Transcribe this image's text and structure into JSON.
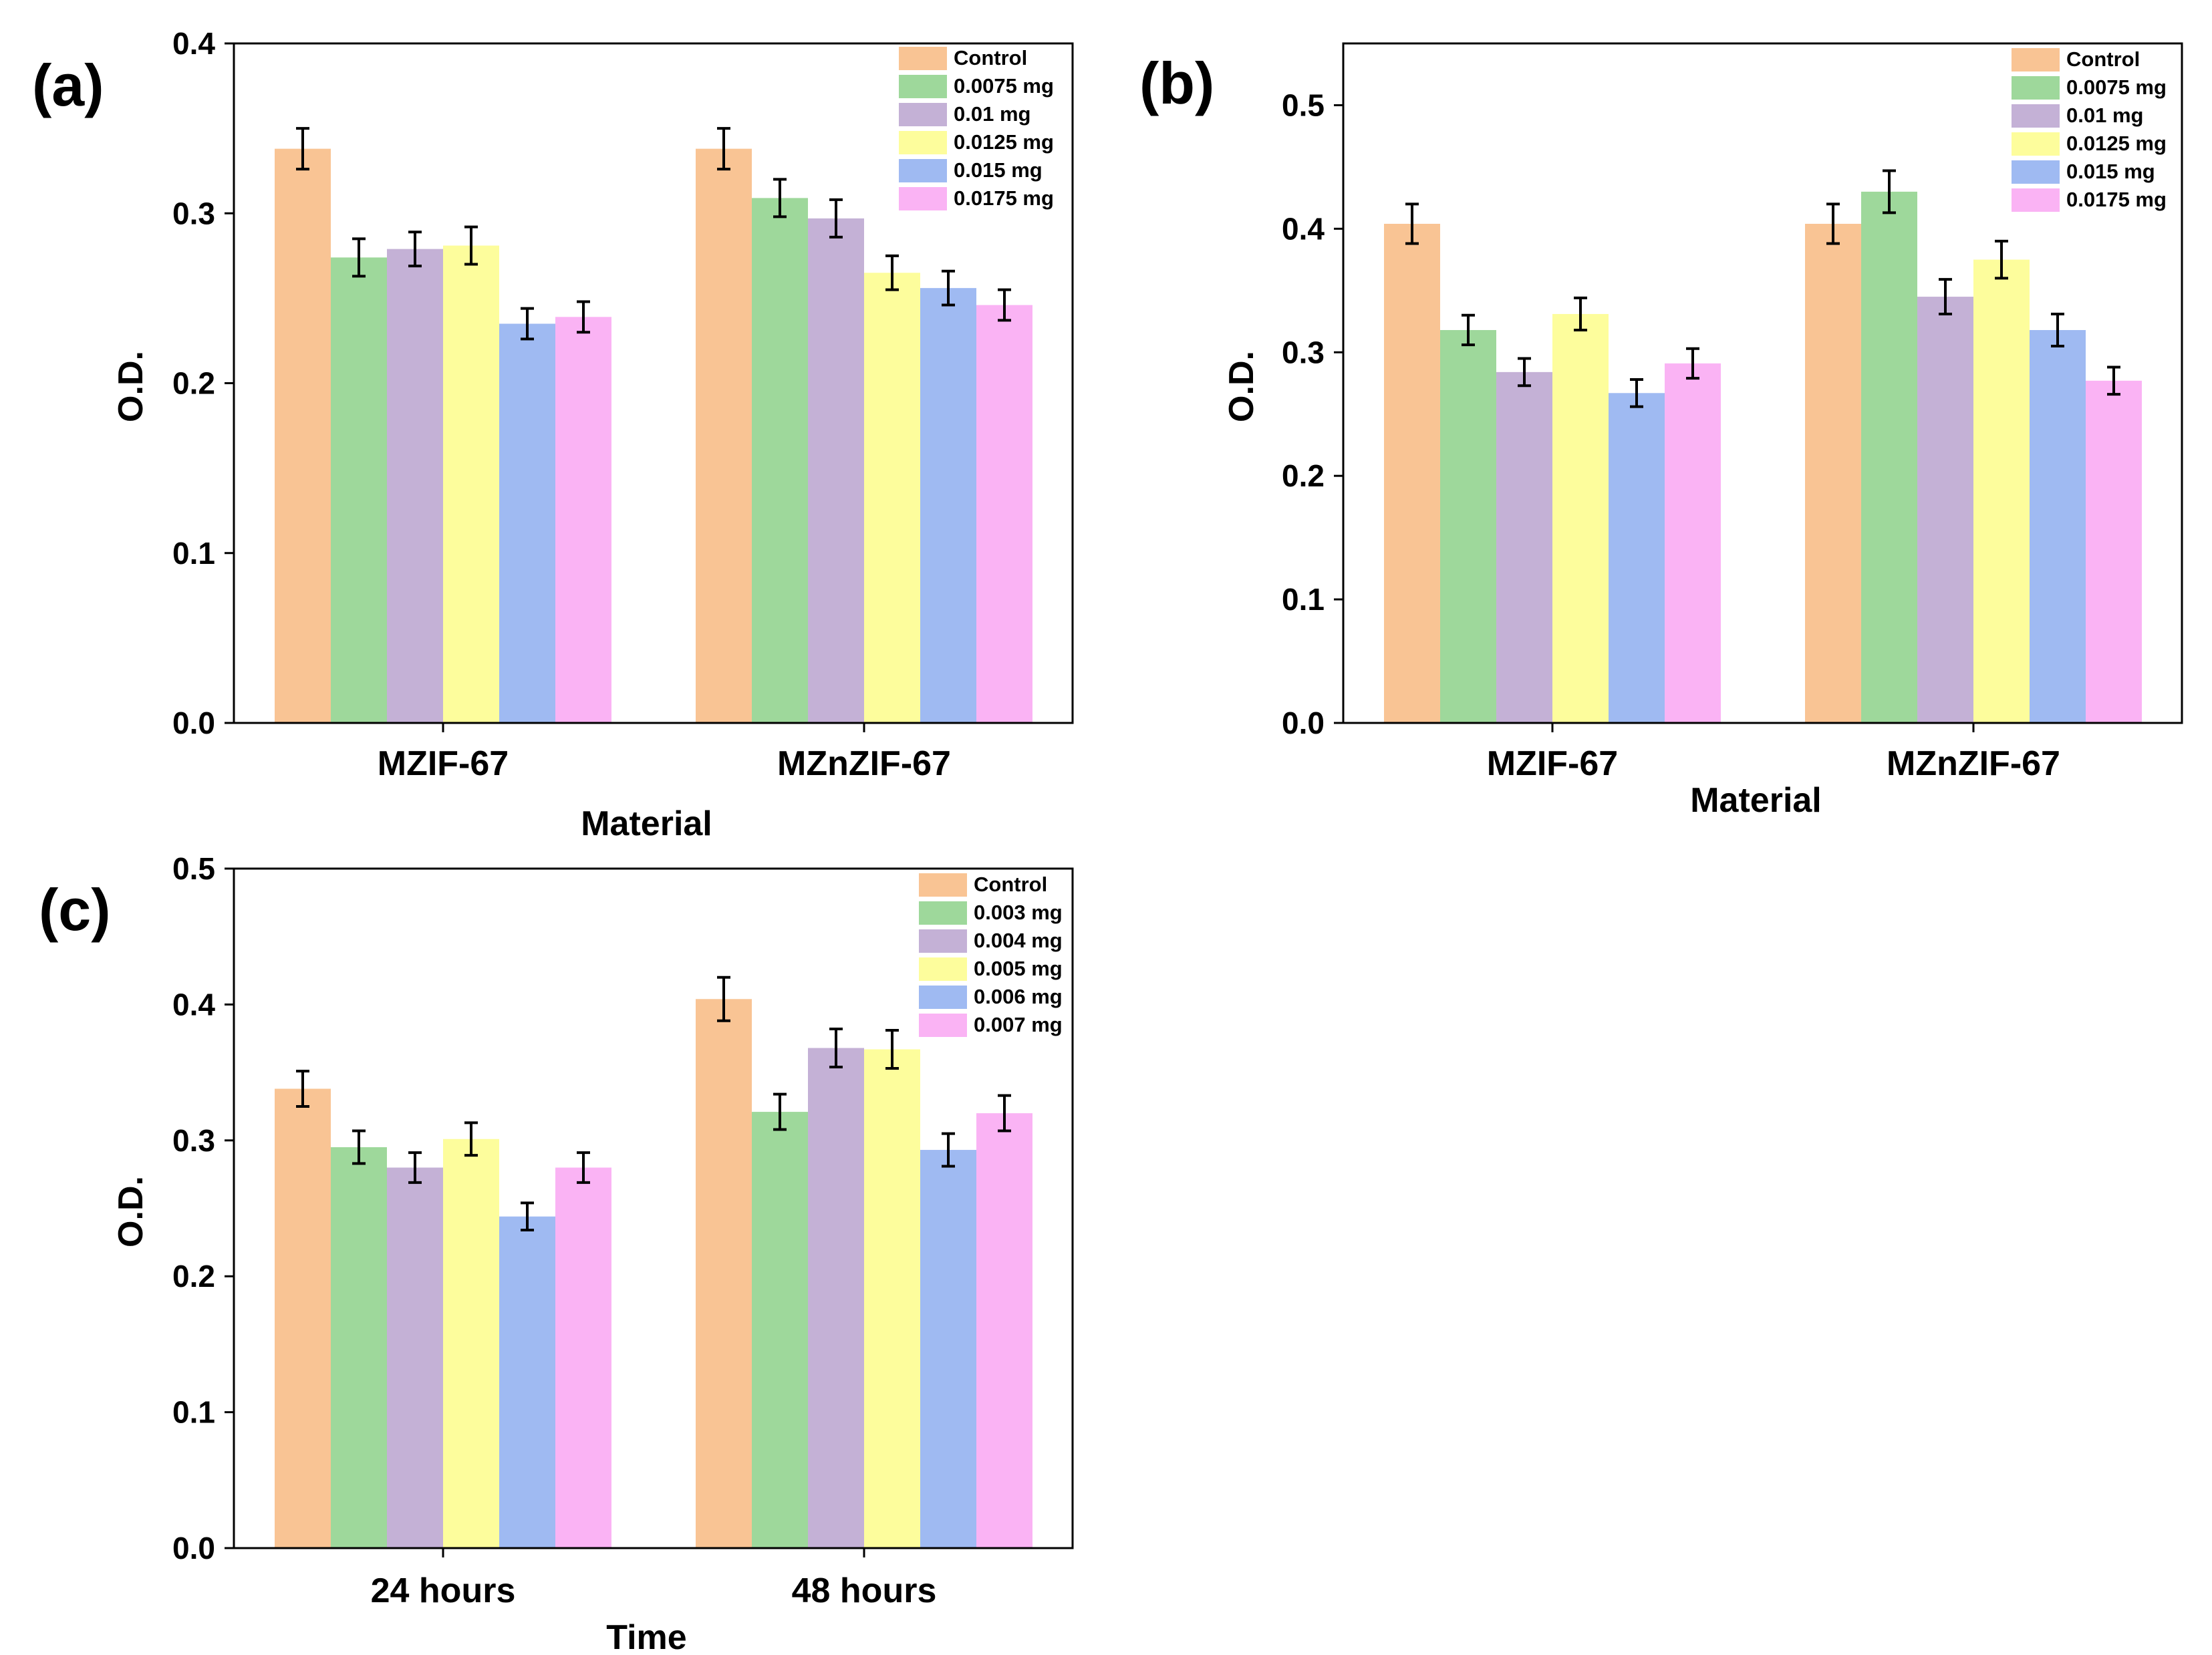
{
  "chart_data": [
    {
      "panel_label": "(a)",
      "type": "bar",
      "xlabel": "Material",
      "ylabel": "O.D.",
      "ylim": [
        0,
        0.4
      ],
      "yticks": [
        "0.0",
        "0.1",
        "0.2",
        "0.3",
        "0.4"
      ],
      "categories": [
        "MZIF-67",
        "MZnZIF-67"
      ],
      "legend_position": "top-right",
      "series": [
        {
          "name": "Control",
          "color": "#f9c494",
          "values": [
            0.338,
            0.338
          ],
          "errors": [
            0.012,
            0.012
          ]
        },
        {
          "name": "0.0075 mg",
          "color": "#9ed89b",
          "values": [
            0.274,
            0.309
          ],
          "errors": [
            0.011,
            0.011
          ]
        },
        {
          "name": "0.01 mg",
          "color": "#c4b1d6",
          "values": [
            0.279,
            0.297
          ],
          "errors": [
            0.01,
            0.011
          ]
        },
        {
          "name": "0.0125 mg",
          "color": "#fdfd9c",
          "values": [
            0.281,
            0.265
          ],
          "errors": [
            0.011,
            0.01
          ]
        },
        {
          "name": "0.015 mg",
          "color": "#9fbaf2",
          "values": [
            0.235,
            0.256
          ],
          "errors": [
            0.009,
            0.01
          ]
        },
        {
          "name": "0.0175 mg",
          "color": "#fab3f4",
          "values": [
            0.239,
            0.246
          ],
          "errors": [
            0.009,
            0.009
          ]
        }
      ]
    },
    {
      "panel_label": "(b)",
      "type": "bar",
      "xlabel": "Material",
      "ylabel": "O.D.",
      "ylim": [
        0,
        0.55
      ],
      "yticks": [
        "0.0",
        "0.1",
        "0.2",
        "0.3",
        "0.4",
        "0.5"
      ],
      "categories": [
        "MZIF-67",
        "MZnZIF-67"
      ],
      "legend_position": "top-right",
      "series": [
        {
          "name": "Control",
          "color": "#f9c494",
          "values": [
            0.404,
            0.404
          ],
          "errors": [
            0.016,
            0.016
          ]
        },
        {
          "name": "0.0075 mg",
          "color": "#9ed89b",
          "values": [
            0.318,
            0.43
          ],
          "errors": [
            0.012,
            0.017
          ]
        },
        {
          "name": "0.01 mg",
          "color": "#c4b1d6",
          "values": [
            0.284,
            0.345
          ],
          "errors": [
            0.011,
            0.014
          ]
        },
        {
          "name": "0.0125 mg",
          "color": "#fdfd9c",
          "values": [
            0.331,
            0.375
          ],
          "errors": [
            0.013,
            0.015
          ]
        },
        {
          "name": "0.015 mg",
          "color": "#9fbaf2",
          "values": [
            0.267,
            0.318
          ],
          "errors": [
            0.011,
            0.013
          ]
        },
        {
          "name": "0.0175 mg",
          "color": "#fab3f4",
          "values": [
            0.291,
            0.277
          ],
          "errors": [
            0.012,
            0.011
          ]
        }
      ]
    },
    {
      "panel_label": "(c)",
      "type": "bar",
      "xlabel": "Time",
      "ylabel": "O.D.",
      "ylim": [
        0,
        0.5
      ],
      "yticks": [
        "0.0",
        "0.1",
        "0.2",
        "0.3",
        "0.4",
        "0.5"
      ],
      "categories": [
        "24 hours",
        "48 hours"
      ],
      "legend_position": "top-right",
      "series": [
        {
          "name": "Control",
          "color": "#f9c494",
          "values": [
            0.338,
            0.404
          ],
          "errors": [
            0.013,
            0.016
          ]
        },
        {
          "name": "0.003 mg",
          "color": "#9ed89b",
          "values": [
            0.295,
            0.321
          ],
          "errors": [
            0.012,
            0.013
          ]
        },
        {
          "name": "0.004 mg",
          "color": "#c4b1d6",
          "values": [
            0.28,
            0.368
          ],
          "errors": [
            0.011,
            0.014
          ]
        },
        {
          "name": "0.005 mg",
          "color": "#fdfd9c",
          "values": [
            0.301,
            0.367
          ],
          "errors": [
            0.012,
            0.014
          ]
        },
        {
          "name": "0.006 mg",
          "color": "#9fbaf2",
          "values": [
            0.244,
            0.293
          ],
          "errors": [
            0.01,
            0.012
          ]
        },
        {
          "name": "0.007 mg",
          "color": "#fab3f4",
          "values": [
            0.28,
            0.32
          ],
          "errors": [
            0.011,
            0.013
          ]
        }
      ]
    }
  ]
}
